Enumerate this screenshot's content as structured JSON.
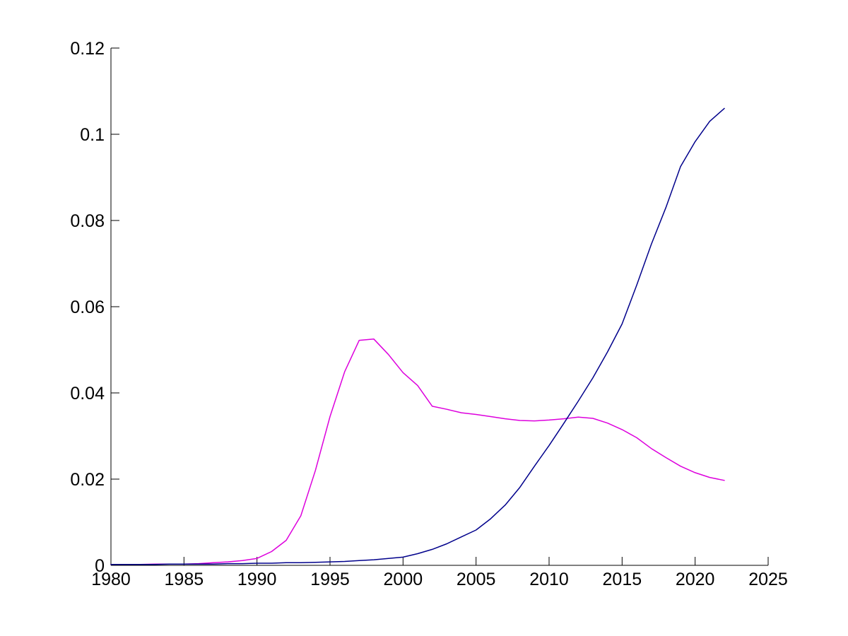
{
  "figure": {
    "background_color": "#ffffff",
    "axis_color": "#000000",
    "text_color": "#000000"
  },
  "chart_data": {
    "type": "line",
    "title": "",
    "xlabel": "",
    "ylabel": "",
    "xlim": [
      1980,
      2025
    ],
    "ylim": [
      0,
      0.12
    ],
    "grid": false,
    "legend_position": "none",
    "x_ticks": [
      1980,
      1985,
      1990,
      1995,
      2000,
      2005,
      2010,
      2015,
      2020,
      2025
    ],
    "x_tick_labels": [
      "1980",
      "1985",
      "1990",
      "1995",
      "2000",
      "2005",
      "2010",
      "2015",
      "2020",
      "2025"
    ],
    "y_ticks": [
      0,
      0.02,
      0.04,
      0.06,
      0.08,
      0.1,
      0.12
    ],
    "y_tick_labels": [
      "0",
      "0.02",
      "0.04",
      "0.06",
      "0.08",
      "0.1",
      "0.12"
    ],
    "x": [
      1980,
      1981,
      1982,
      1983,
      1984,
      1985,
      1986,
      1987,
      1988,
      1989,
      1990,
      1991,
      1992,
      1993,
      1994,
      1995,
      1996,
      1997,
      1998,
      1999,
      2000,
      2001,
      2002,
      2003,
      2004,
      2005,
      2006,
      2007,
      2008,
      2009,
      2010,
      2011,
      2012,
      2013,
      2014,
      2015,
      2016,
      2017,
      2018,
      2019,
      2020,
      2021,
      2022
    ],
    "series": [
      {
        "name": "magenta-line",
        "color": "#DD00DD",
        "stroke_width": 1.5,
        "values": [
          0.0002,
          0.0002,
          0.0002,
          0.0003,
          0.0003,
          0.0003,
          0.0004,
          0.0006,
          0.0008,
          0.0011,
          0.0016,
          0.0032,
          0.0058,
          0.0115,
          0.022,
          0.0345,
          0.0449,
          0.0522,
          0.0525,
          0.0489,
          0.0447,
          0.0417,
          0.0369,
          0.0362,
          0.0354,
          0.035,
          0.0345,
          0.034,
          0.0336,
          0.0335,
          0.0337,
          0.034,
          0.0344,
          0.0341,
          0.033,
          0.0315,
          0.0296,
          0.0271,
          0.025,
          0.023,
          0.0215,
          0.0204,
          0.0197
        ]
      },
      {
        "name": "dark-blue-line",
        "color": "#00008B",
        "stroke_width": 1.5,
        "values": [
          0.0002,
          0.0002,
          0.0002,
          0.0002,
          0.0003,
          0.0003,
          0.0003,
          0.0003,
          0.0004,
          0.0004,
          0.0005,
          0.0005,
          0.0006,
          0.0006,
          0.0007,
          0.0008,
          0.0009,
          0.0011,
          0.0013,
          0.0016,
          0.0019,
          0.0027,
          0.0037,
          0.005,
          0.0066,
          0.0082,
          0.0108,
          0.014,
          0.0181,
          0.023,
          0.0278,
          0.0329,
          0.0381,
          0.0435,
          0.0495,
          0.056,
          0.065,
          0.0745,
          0.083,
          0.0925,
          0.0983,
          0.103,
          0.106
        ]
      }
    ]
  }
}
